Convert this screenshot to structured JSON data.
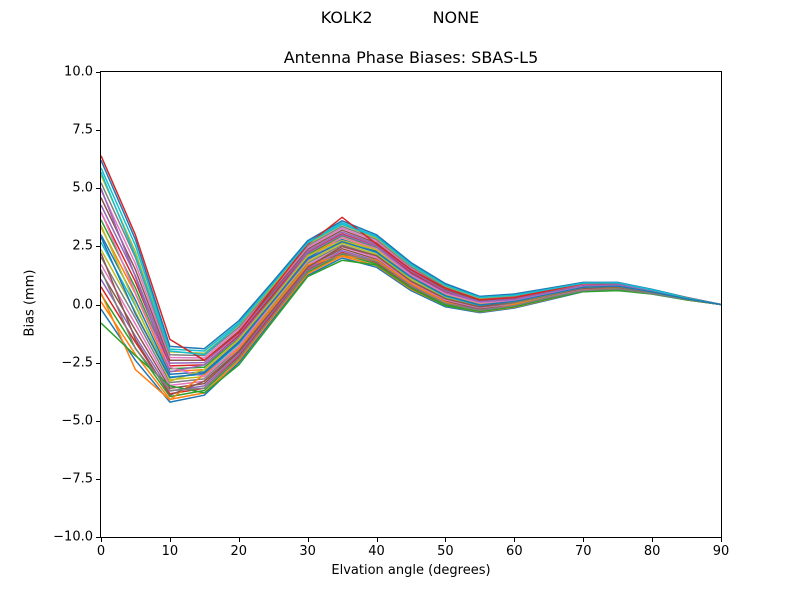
{
  "figure": {
    "suptitle_left": "KOLK2",
    "suptitle_right": "NONE",
    "title": "Antenna Phase Biases: SBAS-L5",
    "xlabel": "Elvation angle (degrees)",
    "ylabel": "Bias (mm)",
    "background": "#ffffff"
  },
  "chart_data": {
    "type": "line",
    "title": "Antenna Phase Biases: SBAS-L5",
    "xlabel": "Elvation angle (degrees)",
    "ylabel": "Bias (mm)",
    "xlim": [
      0,
      90
    ],
    "ylim": [
      -10.0,
      10.0
    ],
    "grid": false,
    "legend": "none",
    "xticks": [
      0,
      10,
      20,
      30,
      40,
      50,
      60,
      70,
      80,
      90
    ],
    "xtick_labels": [
      "0",
      "10",
      "20",
      "30",
      "40",
      "50",
      "60",
      "70",
      "80",
      "90"
    ],
    "yticks": [
      -10.0,
      -7.5,
      -5.0,
      -2.5,
      0.0,
      2.5,
      5.0,
      7.5,
      10.0
    ],
    "ytick_labels": [
      "−10.0",
      "−7.5",
      "−5.0",
      "−2.5",
      "0.0",
      "2.5",
      "5.0",
      "7.5",
      "10.0"
    ],
    "palette": [
      "#1f77b4",
      "#ff7f0e",
      "#2ca02c",
      "#d62728",
      "#9467bd",
      "#8c564b",
      "#e377c2",
      "#7f7f7f",
      "#bcbd22",
      "#17becf"
    ],
    "x": [
      0,
      5,
      10,
      15,
      20,
      25,
      30,
      35,
      40,
      45,
      50,
      55,
      60,
      65,
      70,
      75,
      80,
      85,
      90
    ],
    "series": [
      {
        "values": [
          -0.2,
          -2.4,
          -4.2,
          -3.9,
          -2.5,
          -0.6,
          1.25,
          2.0,
          1.6,
          0.6,
          -0.1,
          -0.35,
          -0.15,
          0.2,
          0.55,
          0.65,
          0.45,
          0.2,
          0.0
        ]
      },
      {
        "values": [
          0.12,
          -2.14,
          -4.08,
          -3.8,
          -2.41,
          -0.52,
          1.33,
          2.08,
          1.67,
          0.66,
          -0.05,
          -0.32,
          -0.12,
          0.23,
          0.57,
          0.67,
          0.46,
          0.21,
          0.0
        ]
      },
      {
        "values": [
          0.44,
          -1.88,
          -3.96,
          -3.7,
          -2.32,
          -0.44,
          1.4,
          2.16,
          1.74,
          0.72,
          0.0,
          -0.28,
          -0.09,
          0.25,
          0.59,
          0.68,
          0.47,
          0.21,
          0.0
        ]
      },
      {
        "values": [
          0.76,
          -1.62,
          -3.84,
          -3.6,
          -2.23,
          -0.36,
          1.48,
          2.24,
          1.81,
          0.78,
          0.05,
          -0.25,
          -0.06,
          0.28,
          0.61,
          0.7,
          0.48,
          0.22,
          0.0
        ]
      },
      {
        "values": [
          1.08,
          -1.36,
          -3.72,
          -3.5,
          -2.14,
          -0.28,
          1.55,
          2.32,
          1.88,
          0.84,
          0.1,
          -0.21,
          -0.03,
          0.3,
          0.63,
          0.71,
          0.49,
          0.22,
          0.0
        ]
      },
      {
        "values": [
          1.4,
          -1.1,
          -3.6,
          -3.4,
          -2.05,
          -0.2,
          1.63,
          2.4,
          1.95,
          0.9,
          0.15,
          -0.18,
          0.0,
          0.33,
          0.65,
          0.73,
          0.5,
          0.23,
          0.0
        ]
      },
      {
        "values": [
          1.72,
          -0.84,
          -3.48,
          -3.3,
          -1.96,
          -0.12,
          1.7,
          2.48,
          2.02,
          0.96,
          0.2,
          -0.14,
          0.03,
          0.35,
          0.67,
          0.74,
          0.51,
          0.23,
          0.0
        ]
      },
      {
        "values": [
          2.04,
          -0.58,
          -3.36,
          -3.2,
          -1.87,
          -0.04,
          1.78,
          2.56,
          2.09,
          1.02,
          0.25,
          -0.11,
          0.06,
          0.38,
          0.69,
          0.76,
          0.52,
          0.24,
          0.0
        ]
      },
      {
        "values": [
          2.36,
          -0.32,
          -3.24,
          -3.1,
          -1.78,
          0.04,
          1.85,
          2.64,
          2.16,
          1.08,
          0.3,
          -0.07,
          0.09,
          0.4,
          0.71,
          0.77,
          0.53,
          0.24,
          0.0
        ]
      },
      {
        "values": [
          2.68,
          -0.06,
          -3.12,
          -3.0,
          -1.69,
          0.12,
          1.93,
          2.72,
          2.23,
          1.14,
          0.35,
          -0.04,
          0.12,
          0.43,
          0.73,
          0.79,
          0.54,
          0.25,
          0.0
        ]
      },
      {
        "values": [
          3.0,
          0.2,
          -3.0,
          -2.9,
          -1.6,
          0.2,
          2.0,
          2.8,
          2.3,
          1.2,
          0.4,
          0.0,
          0.15,
          0.45,
          0.75,
          0.8,
          0.55,
          0.25,
          0.0
        ]
      },
      {
        "values": [
          3.32,
          0.46,
          -2.88,
          -2.8,
          -1.51,
          0.28,
          2.08,
          2.88,
          2.37,
          1.26,
          0.45,
          0.04,
          0.18,
          0.48,
          0.77,
          0.81,
          0.56,
          0.25,
          0.0
        ]
      },
      {
        "values": [
          3.64,
          0.72,
          -2.76,
          -2.7,
          -1.42,
          0.36,
          2.15,
          2.96,
          2.44,
          1.32,
          0.5,
          0.07,
          0.21,
          0.5,
          0.79,
          0.83,
          0.57,
          0.26,
          0.0
        ]
      },
      {
        "values": [
          3.96,
          0.98,
          -2.64,
          -2.6,
          -1.33,
          0.44,
          2.23,
          3.04,
          2.51,
          1.38,
          0.55,
          0.11,
          0.24,
          0.53,
          0.81,
          0.84,
          0.58,
          0.26,
          0.0
        ]
      },
      {
        "values": [
          4.28,
          1.24,
          -2.52,
          -2.5,
          -1.24,
          0.52,
          2.3,
          3.12,
          2.58,
          1.44,
          0.6,
          0.14,
          0.27,
          0.55,
          0.83,
          0.86,
          0.59,
          0.27,
          0.0
        ]
      },
      {
        "values": [
          4.6,
          1.5,
          -2.4,
          -2.4,
          -1.15,
          0.6,
          2.38,
          3.2,
          2.65,
          1.5,
          0.65,
          0.18,
          0.3,
          0.58,
          0.85,
          0.88,
          0.6,
          0.28,
          0.0
        ]
      },
      {
        "values": [
          4.92,
          1.76,
          -2.28,
          -2.3,
          -1.06,
          0.68,
          2.45,
          3.28,
          2.72,
          1.56,
          0.7,
          0.21,
          0.33,
          0.6,
          0.87,
          0.89,
          0.61,
          0.28,
          0.0
        ]
      },
      {
        "values": [
          5.24,
          2.02,
          -2.16,
          -2.2,
          -0.97,
          0.76,
          2.53,
          3.36,
          2.79,
          1.62,
          0.75,
          0.25,
          0.36,
          0.63,
          0.89,
          0.91,
          0.62,
          0.29,
          0.0
        ]
      },
      {
        "values": [
          5.56,
          2.28,
          -2.04,
          -2.1,
          -0.88,
          0.84,
          2.6,
          3.44,
          2.86,
          1.68,
          0.8,
          0.28,
          0.39,
          0.65,
          0.91,
          0.92,
          0.63,
          0.29,
          0.0
        ]
      },
      {
        "values": [
          5.88,
          2.54,
          -1.92,
          -2.0,
          -0.79,
          0.92,
          2.68,
          3.52,
          2.93,
          1.74,
          0.85,
          0.32,
          0.42,
          0.68,
          0.93,
          0.94,
          0.64,
          0.3,
          0.0
        ]
      },
      {
        "values": [
          6.2,
          2.8,
          -1.8,
          -1.9,
          -0.7,
          1.0,
          2.75,
          3.6,
          3.0,
          1.8,
          0.9,
          0.35,
          0.45,
          0.7,
          0.95,
          0.95,
          0.65,
          0.3,
          0.0
        ]
      },
      {
        "values": [
          0.5,
          -2.8,
          -4.1,
          -3.0,
          -1.9,
          -0.1,
          1.7,
          2.1,
          1.9,
          0.9,
          0.1,
          -0.3,
          0.0,
          0.3,
          0.6,
          0.7,
          0.5,
          0.2,
          0.0
        ]
      },
      {
        "values": [
          -0.8,
          -2.2,
          -3.5,
          -3.8,
          -2.6,
          -0.7,
          1.2,
          1.9,
          1.7,
          0.7,
          -0.05,
          -0.3,
          -0.1,
          0.25,
          0.55,
          0.6,
          0.45,
          0.2,
          0.0
        ]
      },
      {
        "values": [
          6.4,
          3.0,
          -1.5,
          -2.4,
          -1.2,
          0.7,
          2.6,
          3.75,
          2.6,
          1.5,
          0.7,
          0.2,
          0.3,
          0.6,
          0.9,
          0.9,
          0.6,
          0.3,
          0.0
        ]
      },
      {
        "values": [
          5.0,
          1.2,
          -2.9,
          -2.6,
          -1.4,
          0.3,
          2.2,
          3.0,
          2.5,
          1.3,
          0.5,
          0.1,
          0.2,
          0.5,
          0.8,
          0.85,
          0.6,
          0.25,
          0.0
        ]
      },
      {
        "values": [
          2.2,
          -1.5,
          -3.9,
          -3.3,
          -2.0,
          -0.2,
          1.6,
          2.5,
          2.1,
          1.0,
          0.25,
          -0.1,
          0.1,
          0.4,
          0.7,
          0.75,
          0.5,
          0.25,
          0.0
        ]
      },
      {
        "values": [
          4.0,
          0.5,
          -2.7,
          -3.1,
          -1.8,
          0.1,
          1.9,
          2.9,
          2.4,
          1.25,
          0.45,
          0.05,
          0.15,
          0.45,
          0.75,
          0.8,
          0.55,
          0.25,
          0.0
        ]
      },
      {
        "values": [
          1.5,
          -1.9,
          -3.7,
          -3.6,
          -2.3,
          -0.45,
          1.45,
          2.2,
          1.85,
          0.8,
          0.05,
          -0.25,
          -0.05,
          0.3,
          0.6,
          0.68,
          0.47,
          0.22,
          0.0
        ]
      },
      {
        "values": [
          3.4,
          0.0,
          -3.3,
          -2.8,
          -1.5,
          0.25,
          2.1,
          2.75,
          2.35,
          1.15,
          0.4,
          0.0,
          0.12,
          0.42,
          0.74,
          0.78,
          0.54,
          0.24,
          0.0
        ]
      },
      {
        "values": [
          5.7,
          2.1,
          -2.0,
          -2.15,
          -0.85,
          0.9,
          2.65,
          3.45,
          2.9,
          1.7,
          0.82,
          0.3,
          0.4,
          0.66,
          0.92,
          0.93,
          0.63,
          0.29,
          0.0
        ]
      },
      {
        "values": [
          2.9,
          -0.4,
          -3.15,
          -2.95,
          -1.65,
          0.15,
          1.95,
          2.7,
          2.25,
          1.18,
          0.38,
          -0.02,
          0.13,
          0.44,
          0.74,
          0.79,
          0.54,
          0.24,
          0.0
        ]
      }
    ]
  }
}
